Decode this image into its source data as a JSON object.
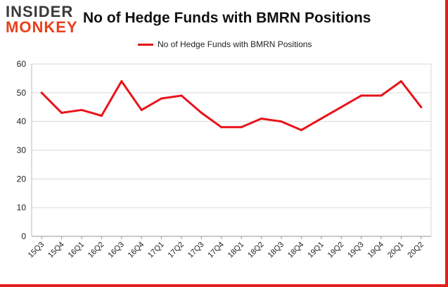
{
  "logo": {
    "line1": "INSIDER",
    "line2": "MONKEY"
  },
  "chart_data": {
    "type": "line",
    "title": "No of Hedge Funds with BMRN Positions",
    "xlabel": "",
    "ylabel": "",
    "legend": "top-center",
    "grid": true,
    "ylim": [
      0,
      60
    ],
    "yticks": [
      0,
      10,
      20,
      30,
      40,
      50,
      60
    ],
    "categories": [
      "15Q3",
      "15Q4",
      "16Q1",
      "16Q2",
      "16Q3",
      "16Q4",
      "17Q1",
      "17Q2",
      "17Q3",
      "17Q4",
      "18Q1",
      "18Q2",
      "18Q3",
      "18Q4",
      "19Q1",
      "19Q2",
      "19Q3",
      "19Q4",
      "20Q1",
      "20Q2"
    ],
    "series": [
      {
        "name": "No of Hedge Funds with BMRN Positions",
        "color": "#e8141a",
        "values": [
          50,
          43,
          44,
          42,
          54,
          44,
          48,
          49,
          43,
          38,
          38,
          41,
          40,
          37,
          41,
          45,
          49,
          49,
          54,
          45
        ]
      }
    ]
  }
}
